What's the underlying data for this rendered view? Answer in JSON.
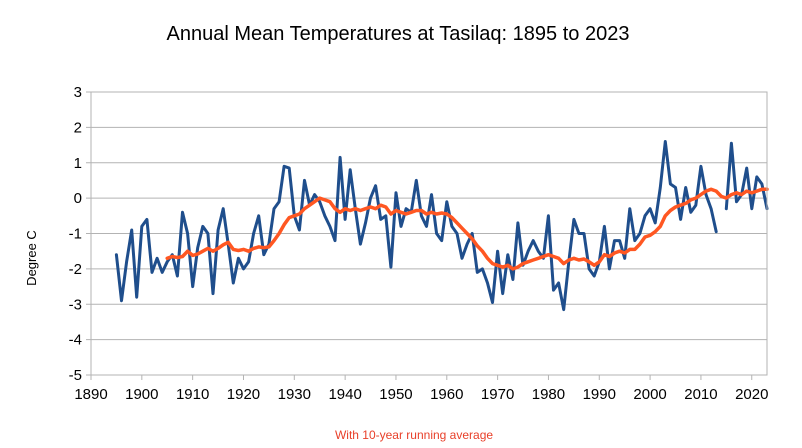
{
  "chart_data": {
    "type": "line",
    "title": "Annual Mean Temperatures at Tasilaq:  1895 to 2023",
    "subtitle": "With 10-year running average",
    "xlabel": "",
    "ylabel": "Degree C",
    "xlim": [
      1890,
      2023
    ],
    "ylim": [
      -5,
      3
    ],
    "x_ticks": [
      "1890",
      "1900",
      "1910",
      "1920",
      "1930",
      "1940",
      "1950",
      "1960",
      "1970",
      "1980",
      "1990",
      "2000",
      "2010",
      "2020"
    ],
    "y_ticks": [
      "3",
      "2",
      "1",
      "0",
      "-1",
      "-2",
      "-3",
      "-4",
      "-5"
    ],
    "grid": true,
    "legend": "none",
    "series": [
      {
        "color": "#1f4e8c",
        "points": [
          [
            1895,
            -1.6
          ],
          [
            1896,
            -2.9
          ],
          [
            1897,
            -1.8
          ],
          [
            1898,
            -0.9
          ],
          [
            1899,
            -2.8
          ],
          [
            1900,
            -0.8
          ],
          [
            1901,
            -0.6
          ],
          [
            1902,
            -2.1
          ],
          [
            1903,
            -1.7
          ],
          [
            1904,
            -2.1
          ],
          [
            1905,
            -1.8
          ],
          [
            1906,
            -1.6
          ],
          [
            1907,
            -2.2
          ],
          [
            1908,
            -0.4
          ],
          [
            1909,
            -1.0
          ],
          [
            1910,
            -2.5
          ],
          [
            1911,
            -1.4
          ],
          [
            1912,
            -0.8
          ],
          [
            1913,
            -1.0
          ],
          [
            1914,
            -2.7
          ],
          [
            1915,
            -0.9
          ],
          [
            1916,
            -0.3
          ],
          [
            1917,
            -1.3
          ],
          [
            1918,
            -2.4
          ],
          [
            1919,
            -1.7
          ],
          [
            1920,
            -2.0
          ],
          [
            1921,
            -1.8
          ],
          [
            1922,
            -1.0
          ],
          [
            1923,
            -0.5
          ],
          [
            1924,
            -1.6
          ],
          [
            1925,
            -1.3
          ],
          [
            1926,
            -0.3
          ],
          [
            1927,
            -0.1
          ],
          [
            1928,
            0.9
          ],
          [
            1929,
            0.85
          ],
          [
            1930,
            -0.5
          ],
          [
            1931,
            -0.9
          ],
          [
            1932,
            0.5
          ],
          [
            1933,
            -0.2
          ],
          [
            1934,
            0.1
          ],
          [
            1935,
            -0.1
          ],
          [
            1936,
            -0.5
          ],
          [
            1937,
            -0.8
          ],
          [
            1938,
            -1.2
          ],
          [
            1939,
            1.15
          ],
          [
            1940,
            -0.6
          ],
          [
            1941,
            0.8
          ],
          [
            1942,
            -0.3
          ],
          [
            1943,
            -1.3
          ],
          [
            1944,
            -0.7
          ],
          [
            1945,
            0.0
          ],
          [
            1946,
            0.35
          ],
          [
            1947,
            -0.6
          ],
          [
            1948,
            -0.5
          ],
          [
            1949,
            -1.95
          ],
          [
            1950,
            0.15
          ],
          [
            1951,
            -0.8
          ],
          [
            1952,
            -0.3
          ],
          [
            1953,
            -0.4
          ],
          [
            1954,
            0.5
          ],
          [
            1955,
            -0.5
          ],
          [
            1956,
            -0.8
          ],
          [
            1957,
            0.1
          ],
          [
            1958,
            -1.0
          ],
          [
            1959,
            -1.2
          ],
          [
            1960,
            -0.1
          ],
          [
            1961,
            -0.8
          ],
          [
            1962,
            -1.0
          ],
          [
            1963,
            -1.7
          ],
          [
            1964,
            -1.3
          ],
          [
            1965,
            -1.0
          ],
          [
            1966,
            -2.1
          ],
          [
            1967,
            -2.0
          ],
          [
            1968,
            -2.4
          ],
          [
            1969,
            -2.95
          ],
          [
            1970,
            -1.5
          ],
          [
            1971,
            -2.7
          ],
          [
            1972,
            -1.6
          ],
          [
            1973,
            -2.3
          ],
          [
            1974,
            -0.7
          ],
          [
            1975,
            -1.9
          ],
          [
            1976,
            -1.5
          ],
          [
            1977,
            -1.2
          ],
          [
            1978,
            -1.5
          ],
          [
            1979,
            -1.7
          ],
          [
            1980,
            -0.5
          ],
          [
            1981,
            -2.6
          ],
          [
            1982,
            -2.4
          ],
          [
            1983,
            -3.15
          ],
          [
            1984,
            -1.8
          ],
          [
            1985,
            -0.6
          ],
          [
            1986,
            -1.0
          ],
          [
            1987,
            -1.0
          ],
          [
            1988,
            -2.0
          ],
          [
            1989,
            -2.2
          ],
          [
            1990,
            -1.8
          ],
          [
            1991,
            -0.8
          ],
          [
            1992,
            -2.0
          ],
          [
            1993,
            -1.2
          ],
          [
            1994,
            -1.2
          ],
          [
            1995,
            -1.7
          ],
          [
            1996,
            -0.3
          ],
          [
            1997,
            -1.2
          ],
          [
            1998,
            -1.0
          ],
          [
            1999,
            -0.5
          ],
          [
            2000,
            -0.3
          ],
          [
            2001,
            -0.7
          ],
          [
            2002,
            0.3
          ],
          [
            2003,
            1.6
          ],
          [
            2004,
            0.4
          ],
          [
            2005,
            0.3
          ],
          [
            2006,
            -0.6
          ],
          [
            2007,
            0.3
          ],
          [
            2008,
            -0.4
          ],
          [
            2009,
            -0.2
          ],
          [
            2010,
            0.9
          ],
          [
            2011,
            0.1
          ],
          [
            2012,
            -0.3
          ],
          [
            2013,
            -0.95
          ],
          null,
          [
            2015,
            -0.3
          ],
          [
            2016,
            1.55
          ],
          [
            2017,
            -0.1
          ],
          [
            2018,
            0.1
          ],
          [
            2019,
            0.85
          ],
          [
            2020,
            -0.3
          ],
          [
            2021,
            0.6
          ],
          [
            2022,
            0.4
          ],
          [
            2023,
            -0.3
          ]
        ]
      },
      {
        "color": "#ff5722",
        "points": [
          [
            1905,
            -1.7
          ],
          [
            1906,
            -1.65
          ],
          [
            1907,
            -1.68
          ],
          [
            1908,
            -1.65
          ],
          [
            1909,
            -1.5
          ],
          [
            1910,
            -1.62
          ],
          [
            1911,
            -1.58
          ],
          [
            1912,
            -1.5
          ],
          [
            1913,
            -1.42
          ],
          [
            1914,
            -1.5
          ],
          [
            1915,
            -1.42
          ],
          [
            1916,
            -1.32
          ],
          [
            1917,
            -1.25
          ],
          [
            1918,
            -1.45
          ],
          [
            1919,
            -1.48
          ],
          [
            1920,
            -1.45
          ],
          [
            1921,
            -1.5
          ],
          [
            1922,
            -1.42
          ],
          [
            1923,
            -1.38
          ],
          [
            1924,
            -1.4
          ],
          [
            1925,
            -1.38
          ],
          [
            1926,
            -1.2
          ],
          [
            1927,
            -1.0
          ],
          [
            1928,
            -0.75
          ],
          [
            1929,
            -0.55
          ],
          [
            1930,
            -0.5
          ],
          [
            1931,
            -0.45
          ],
          [
            1932,
            -0.3
          ],
          [
            1933,
            -0.2
          ],
          [
            1934,
            -0.1
          ],
          [
            1935,
            0.0
          ],
          [
            1936,
            -0.05
          ],
          [
            1937,
            -0.1
          ],
          [
            1938,
            -0.3
          ],
          [
            1939,
            -0.4
          ],
          [
            1940,
            -0.3
          ],
          [
            1941,
            -0.35
          ],
          [
            1942,
            -0.3
          ],
          [
            1943,
            -0.35
          ],
          [
            1944,
            -0.3
          ],
          [
            1945,
            -0.25
          ],
          [
            1946,
            -0.3
          ],
          [
            1947,
            -0.2
          ],
          [
            1948,
            -0.25
          ],
          [
            1949,
            -0.45
          ],
          [
            1950,
            -0.35
          ],
          [
            1951,
            -0.4
          ],
          [
            1952,
            -0.45
          ],
          [
            1953,
            -0.4
          ],
          [
            1954,
            -0.35
          ],
          [
            1955,
            -0.35
          ],
          [
            1956,
            -0.45
          ],
          [
            1957,
            -0.4
          ],
          [
            1958,
            -0.45
          ],
          [
            1959,
            -0.42
          ],
          [
            1960,
            -0.45
          ],
          [
            1961,
            -0.55
          ],
          [
            1962,
            -0.7
          ],
          [
            1963,
            -0.85
          ],
          [
            1964,
            -1.0
          ],
          [
            1965,
            -1.15
          ],
          [
            1966,
            -1.35
          ],
          [
            1967,
            -1.5
          ],
          [
            1968,
            -1.7
          ],
          [
            1969,
            -1.85
          ],
          [
            1970,
            -1.9
          ],
          [
            1971,
            -1.95
          ],
          [
            1972,
            -1.9
          ],
          [
            1973,
            -2.0
          ],
          [
            1974,
            -1.95
          ],
          [
            1975,
            -1.85
          ],
          [
            1976,
            -1.8
          ],
          [
            1977,
            -1.75
          ],
          [
            1978,
            -1.7
          ],
          [
            1979,
            -1.65
          ],
          [
            1980,
            -1.6
          ],
          [
            1981,
            -1.65
          ],
          [
            1982,
            -1.7
          ],
          [
            1983,
            -1.85
          ],
          [
            1984,
            -1.75
          ],
          [
            1985,
            -1.7
          ],
          [
            1986,
            -1.75
          ],
          [
            1987,
            -1.72
          ],
          [
            1988,
            -1.8
          ],
          [
            1989,
            -1.9
          ],
          [
            1990,
            -1.8
          ],
          [
            1991,
            -1.6
          ],
          [
            1992,
            -1.65
          ],
          [
            1993,
            -1.55
          ],
          [
            1994,
            -1.5
          ],
          [
            1995,
            -1.55
          ],
          [
            1996,
            -1.45
          ],
          [
            1997,
            -1.45
          ],
          [
            1998,
            -1.3
          ],
          [
            1999,
            -1.1
          ],
          [
            2000,
            -1.05
          ],
          [
            2001,
            -0.95
          ],
          [
            2002,
            -0.8
          ],
          [
            2003,
            -0.5
          ],
          [
            2004,
            -0.35
          ],
          [
            2005,
            -0.25
          ],
          [
            2006,
            -0.2
          ],
          [
            2007,
            -0.15
          ],
          [
            2008,
            -0.05
          ],
          [
            2009,
            0.0
          ],
          [
            2010,
            0.1
          ],
          [
            2011,
            0.2
          ],
          [
            2012,
            0.25
          ],
          [
            2013,
            0.2
          ],
          [
            2014,
            0.05
          ],
          [
            2015,
            0.0
          ],
          [
            2016,
            0.1
          ],
          [
            2017,
            0.15
          ],
          [
            2018,
            0.1
          ],
          [
            2019,
            0.2
          ],
          [
            2020,
            0.15
          ],
          [
            2021,
            0.2
          ],
          [
            2022,
            0.25
          ],
          [
            2023,
            0.25
          ]
        ]
      }
    ]
  }
}
